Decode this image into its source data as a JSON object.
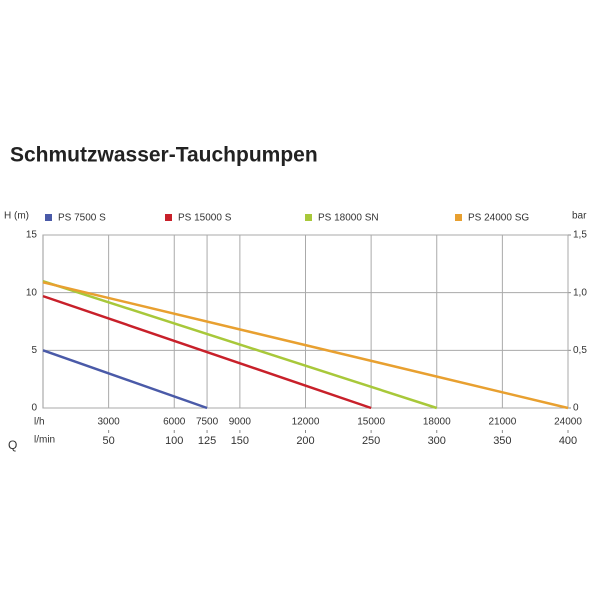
{
  "chart_data": {
    "type": "line",
    "title": "Schmutzwasser-Tauchpumpen",
    "y_label": "H (m)",
    "y2_label": "bar",
    "x_label": "l/h",
    "x2_label": "l/min",
    "q_label": "Q",
    "xlim": [
      0,
      24000
    ],
    "xticks": [
      3000,
      6000,
      7500,
      9000,
      12000,
      15000,
      18000,
      21000,
      24000
    ],
    "x2lim": [
      0,
      400
    ],
    "x2ticks": [
      50,
      100,
      125,
      150,
      200,
      250,
      300,
      350,
      400
    ],
    "ylim": [
      0,
      15
    ],
    "yticks": [
      0,
      5,
      10,
      15
    ],
    "y2lim": [
      0,
      1.5
    ],
    "y2ticks": [
      0,
      {
        "value": 0.5,
        "label": "0,5"
      },
      {
        "value": 1,
        "label": "1,0"
      },
      {
        "value": 1.5,
        "label": "1,5"
      }
    ],
    "grid": true,
    "series": [
      {
        "name": "PS 7500 S",
        "color": "#4a5aa8",
        "x": [
          0,
          7500
        ],
        "values": [
          5,
          0
        ]
      },
      {
        "name": "PS 15000 S",
        "color": "#c8202a",
        "x": [
          0,
          15000
        ],
        "values": [
          9.7,
          0
        ]
      },
      {
        "name": "PS 18000 SN",
        "color": "#a8c83a",
        "x": [
          0,
          18000
        ],
        "values": [
          11,
          0
        ]
      },
      {
        "name": "PS 24000 SG",
        "color": "#e8a030",
        "x": [
          0,
          24000
        ],
        "values": [
          10.9,
          0
        ]
      }
    ]
  }
}
